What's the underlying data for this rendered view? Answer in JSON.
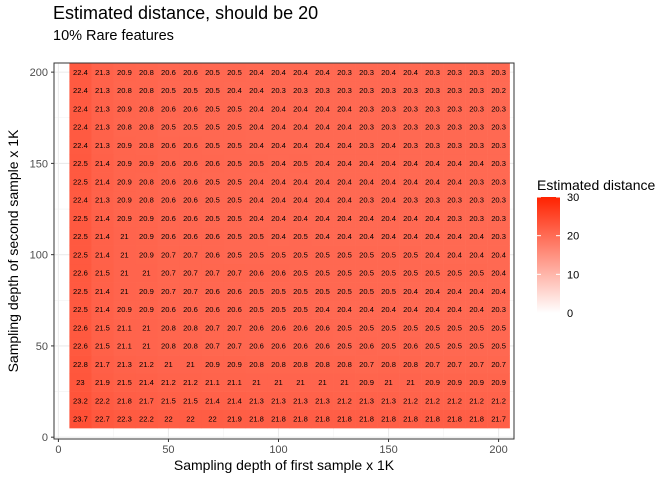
{
  "chart_data": {
    "type": "heatmap",
    "title": "Estimated distance, should be 20",
    "subtitle": "10% Rare features",
    "xlabel": "Sampling depth of first sample x 1K",
    "ylabel": "Sampling depth of second sample x 1K",
    "x": [
      10,
      20,
      30,
      40,
      50,
      60,
      70,
      80,
      90,
      100,
      110,
      120,
      130,
      140,
      150,
      160,
      170,
      180,
      190,
      200
    ],
    "y": [
      10,
      20,
      30,
      40,
      50,
      60,
      70,
      80,
      90,
      100,
      110,
      120,
      130,
      140,
      150,
      160,
      170,
      180,
      190,
      200
    ],
    "xlim": [
      -2,
      207
    ],
    "ylim": [
      -1,
      205
    ],
    "x_ticks": [
      0,
      50,
      100,
      150,
      200
    ],
    "y_ticks": [
      0,
      50,
      100,
      150,
      200
    ],
    "grid": true,
    "legend": {
      "title": "Estimated distance",
      "position": "right",
      "ticks": [
        0,
        10,
        20,
        30
      ],
      "range": [
        0,
        30
      ],
      "color_low": "#ffffff",
      "color_high": "#ff2200"
    },
    "labels": [
      [
        "23.7",
        "22.7",
        "22.3",
        "22.2",
        "22",
        "22",
        "22",
        "21.9",
        "21.8",
        "21.8",
        "21.8",
        "21.8",
        "21.8",
        "21.8",
        "21.8",
        "21.8",
        "21.8",
        "21.8",
        "21.8",
        "21.7"
      ],
      [
        "23.2",
        "22.2",
        "21.8",
        "21.7",
        "21.5",
        "21.5",
        "21.4",
        "21.4",
        "21.3",
        "21.3",
        "21.3",
        "21.3",
        "21.2",
        "21.3",
        "21.3",
        "21.2",
        "21.2",
        "21.2",
        "21.2",
        "21.2"
      ],
      [
        "23",
        "21.9",
        "21.5",
        "21.4",
        "21.2",
        "21.2",
        "21.1",
        "21.1",
        "21",
        "21",
        "21",
        "21",
        "21",
        "20.9",
        "21",
        "21",
        "20.9",
        "20.9",
        "20.9",
        "20.9"
      ],
      [
        "22.8",
        "21.7",
        "21.3",
        "21.2",
        "21",
        "21",
        "20.9",
        "20.9",
        "20.8",
        "20.8",
        "20.8",
        "20.8",
        "20.8",
        "20.7",
        "20.8",
        "20.8",
        "20.7",
        "20.7",
        "20.7",
        "20.7"
      ],
      [
        "22.6",
        "21.5",
        "21.1",
        "21",
        "20.8",
        "20.8",
        "20.7",
        "20.7",
        "20.6",
        "20.6",
        "20.6",
        "20.6",
        "20.5",
        "20.6",
        "20.5",
        "20.6",
        "20.5",
        "20.5",
        "20.5",
        "20.5"
      ],
      [
        "22.6",
        "21.5",
        "21.1",
        "21",
        "20.8",
        "20.8",
        "20.7",
        "20.7",
        "20.6",
        "20.6",
        "20.6",
        "20.6",
        "20.5",
        "20.5",
        "20.5",
        "20.5",
        "20.5",
        "20.5",
        "20.5",
        "20.5"
      ],
      [
        "22.5",
        "21.4",
        "20.9",
        "20.9",
        "20.6",
        "20.6",
        "20.6",
        "20.6",
        "20.5",
        "20.5",
        "20.5",
        "20.4",
        "20.4",
        "20.4",
        "20.4",
        "20.4",
        "20.4",
        "20.4",
        "20.4",
        "20.3"
      ],
      [
        "22.5",
        "21.4",
        "21",
        "20.9",
        "20.7",
        "20.7",
        "20.6",
        "20.6",
        "20.5",
        "20.5",
        "20.5",
        "20.5",
        "20.5",
        "20.5",
        "20.5",
        "20.4",
        "20.4",
        "20.4",
        "20.4",
        "20.4"
      ],
      [
        "22.6",
        "21.5",
        "21",
        "21",
        "20.7",
        "20.7",
        "20.7",
        "20.7",
        "20.6",
        "20.6",
        "20.5",
        "20.5",
        "20.5",
        "20.5",
        "20.5",
        "20.5",
        "20.5",
        "20.5",
        "20.5",
        "20.4"
      ],
      [
        "22.5",
        "21.4",
        "21",
        "20.9",
        "20.7",
        "20.7",
        "20.6",
        "20.5",
        "20.5",
        "20.5",
        "20.5",
        "20.5",
        "20.5",
        "20.5",
        "20.5",
        "20.5",
        "20.4",
        "20.4",
        "20.4",
        "20.4"
      ],
      [
        "22.5",
        "21.4",
        "21",
        "20.9",
        "20.6",
        "20.6",
        "20.6",
        "20.5",
        "20.5",
        "20.4",
        "20.5",
        "20.4",
        "20.4",
        "20.4",
        "20.4",
        "20.4",
        "20.4",
        "20.4",
        "20.4",
        "20.3"
      ],
      [
        "22.5",
        "21.4",
        "20.9",
        "20.9",
        "20.6",
        "20.6",
        "20.5",
        "20.5",
        "20.4",
        "20.4",
        "20.4",
        "20.4",
        "20.4",
        "20.4",
        "20.4",
        "20.4",
        "20.4",
        "20.3",
        "20.3",
        "20.3"
      ],
      [
        "22.4",
        "21.3",
        "20.9",
        "20.8",
        "20.6",
        "20.6",
        "20.5",
        "20.5",
        "20.4",
        "20.4",
        "20.4",
        "20.4",
        "20.4",
        "20.3",
        "20.4",
        "20.3",
        "20.3",
        "20.3",
        "20.3",
        "20.3"
      ],
      [
        "22.5",
        "21.4",
        "20.9",
        "20.8",
        "20.6",
        "20.6",
        "20.5",
        "20.5",
        "20.4",
        "20.4",
        "20.4",
        "20.4",
        "20.4",
        "20.4",
        "20.4",
        "20.4",
        "20.4",
        "20.4",
        "20.3",
        "20.3"
      ],
      [
        "22.5",
        "21.4",
        "20.9",
        "20.9",
        "20.6",
        "20.6",
        "20.6",
        "20.5",
        "20.5",
        "20.4",
        "20.5",
        "20.4",
        "20.4",
        "20.4",
        "20.4",
        "20.4",
        "20.4",
        "20.4",
        "20.4",
        "20.3"
      ],
      [
        "22.4",
        "21.3",
        "20.9",
        "20.8",
        "20.6",
        "20.6",
        "20.5",
        "20.5",
        "20.4",
        "20.4",
        "20.4",
        "20.4",
        "20.4",
        "20.3",
        "20.4",
        "20.3",
        "20.3",
        "20.3",
        "20.3",
        "20.3"
      ],
      [
        "22.4",
        "21.3",
        "20.8",
        "20.8",
        "20.5",
        "20.5",
        "20.5",
        "20.5",
        "20.4",
        "20.4",
        "20.4",
        "20.4",
        "20.4",
        "20.3",
        "20.3",
        "20.3",
        "20.3",
        "20.3",
        "20.3",
        "20.3"
      ],
      [
        "22.4",
        "21.3",
        "20.9",
        "20.8",
        "20.6",
        "20.6",
        "20.5",
        "20.5",
        "20.4",
        "20.4",
        "20.4",
        "20.4",
        "20.4",
        "20.3",
        "20.3",
        "20.3",
        "20.3",
        "20.3",
        "20.3",
        "20.3"
      ],
      [
        "22.4",
        "21.3",
        "20.8",
        "20.8",
        "20.5",
        "20.5",
        "20.5",
        "20.4",
        "20.4",
        "20.3",
        "20.3",
        "20.3",
        "20.3",
        "20.3",
        "20.3",
        "20.3",
        "20.3",
        "20.3",
        "20.3",
        "20.2"
      ],
      [
        "22.4",
        "21.3",
        "20.9",
        "20.8",
        "20.6",
        "20.6",
        "20.5",
        "20.5",
        "20.4",
        "20.4",
        "20.4",
        "20.4",
        "20.3",
        "20.3",
        "20.4",
        "20.4",
        "20.3",
        "20.3",
        "20.3",
        "20.3"
      ]
    ]
  }
}
